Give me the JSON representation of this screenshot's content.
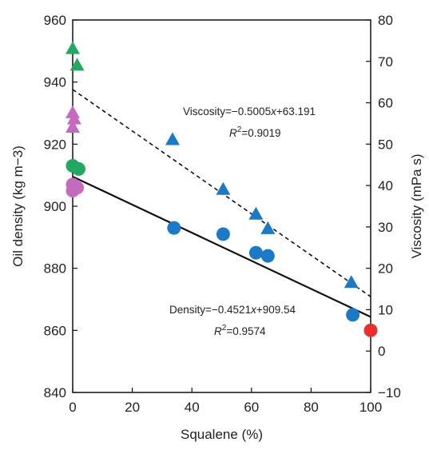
{
  "chart_data": {
    "type": "scatter",
    "xlabel": "Squalene (%)",
    "ylabel_left": "Oil density (kg m−3)",
    "ylabel_right": "Viscosity (mPa s)",
    "xlim": [
      0,
      100
    ],
    "ylim_left": [
      840,
      960
    ],
    "ylim_right": [
      -10,
      80
    ],
    "x_ticks": [
      "0",
      "20",
      "40",
      "60",
      "80",
      "100"
    ],
    "y_left_ticks": [
      "840",
      "860",
      "880",
      "900",
      "920",
      "940",
      "960"
    ],
    "y_right_ticks": [
      "−10",
      "0",
      "10",
      "20",
      "30",
      "40",
      "50",
      "60",
      "70",
      "80"
    ],
    "grid": false,
    "series": [
      {
        "axis": "left",
        "marker": "circle",
        "color": "#1a7ac8",
        "points": [
          [
            34,
            893
          ],
          [
            50.5,
            891
          ],
          [
            61.5,
            885
          ],
          [
            65.5,
            884
          ],
          [
            94,
            865
          ]
        ]
      },
      {
        "axis": "left",
        "marker": "circle",
        "color": "#22a861",
        "points": [
          [
            0,
            913
          ],
          [
            2,
            912
          ]
        ]
      },
      {
        "axis": "left",
        "marker": "circle",
        "color": "#c46bbd",
        "points": [
          [
            0,
            907
          ],
          [
            1.5,
            906
          ],
          [
            0,
            905
          ]
        ]
      },
      {
        "axis": "left",
        "marker": "circle",
        "color": "#e8302e",
        "points": [
          [
            100,
            860
          ]
        ]
      },
      {
        "axis": "right",
        "marker": "triangle",
        "color": "#1a7ac8",
        "points": [
          [
            33.5,
            51
          ],
          [
            50.5,
            39
          ],
          [
            61.5,
            33
          ],
          [
            65.5,
            29.5
          ],
          [
            93.5,
            16.5
          ]
        ]
      },
      {
        "axis": "right",
        "marker": "triangle",
        "color": "#22a861",
        "points": [
          [
            0,
            73
          ],
          [
            1.5,
            69
          ]
        ]
      },
      {
        "axis": "right",
        "marker": "triangle",
        "color": "#c46bbd",
        "points": [
          [
            0,
            57.5
          ],
          [
            0.5,
            56
          ],
          [
            0,
            54
          ]
        ]
      }
    ],
    "fit_lines": [
      {
        "axis": "left",
        "style": "solid",
        "slope": -0.4521,
        "intercept": 909.54,
        "x_range": [
          0,
          100
        ]
      },
      {
        "axis": "right",
        "style": "dashed",
        "slope": -0.5005,
        "intercept": 63.191,
        "x_range": [
          0,
          100
        ]
      }
    ],
    "annotations": {
      "viscosity_eq_prefix": "Viscosity=−0.5005",
      "viscosity_eq_var": "x",
      "viscosity_eq_suffix": "+63.191",
      "viscosity_r2_value": "=0.9019",
      "density_eq_prefix": "Density=−0.4521",
      "density_eq_var": "x",
      "density_eq_suffix": "+909.54",
      "density_r2_value": "=0.9574",
      "r2_symbol": "R",
      "r2_exponent": "2"
    }
  }
}
